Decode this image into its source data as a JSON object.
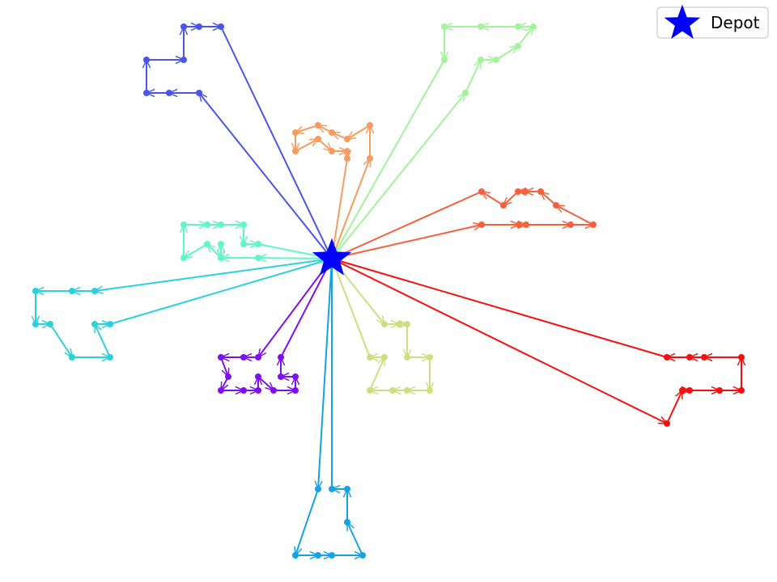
{
  "chart_data": {
    "type": "route-map",
    "title": "",
    "axes_visible": false,
    "legend": {
      "placement": "top-right",
      "entries": [
        {
          "label": "Depot",
          "marker": "star",
          "color": "#0000ff"
        }
      ]
    },
    "depot": {
      "x": 410,
      "y": 320
    },
    "routes": [
      {
        "name": "route-blue",
        "color": "#4a55ec",
        "stops": [
          [
            246,
            115
          ],
          [
            209,
            115
          ],
          [
            181,
            115
          ],
          [
            181,
            74
          ],
          [
            227,
            74
          ],
          [
            227,
            33
          ],
          [
            246,
            33
          ],
          [
            273,
            33
          ]
        ]
      },
      {
        "name": "route-orange",
        "color": "#f79c5c",
        "stops": [
          [
            457,
            196
          ],
          [
            457,
            155
          ],
          [
            429,
            172
          ],
          [
            410,
            164
          ],
          [
            393,
            155
          ],
          [
            365,
            164
          ],
          [
            365,
            187
          ],
          [
            393,
            172
          ],
          [
            410,
            187
          ],
          [
            429,
            187
          ],
          [
            429,
            196
          ]
        ]
      },
      {
        "name": "route-lightgreen",
        "color": "#a2f39a",
        "stops": [
          [
            575,
            115
          ],
          [
            594,
            74
          ],
          [
            613,
            74
          ],
          [
            640,
            57
          ],
          [
            659,
            33
          ],
          [
            640,
            33
          ],
          [
            594,
            33
          ],
          [
            549,
            33
          ],
          [
            549,
            74
          ]
        ]
      },
      {
        "name": "route-redorange",
        "color": "#f5603d",
        "stops": [
          [
            595,
            278
          ],
          [
            641,
            278
          ],
          [
            650,
            278
          ],
          [
            705,
            278
          ],
          [
            733,
            278
          ],
          [
            687,
            254
          ],
          [
            668,
            237
          ],
          [
            649,
            237
          ],
          [
            640,
            237
          ],
          [
            622,
            254
          ],
          [
            595,
            237
          ]
        ]
      },
      {
        "name": "route-aqua",
        "color": "#62f5c8",
        "stops": [
          [
            319,
            319
          ],
          [
            273,
            319
          ],
          [
            273,
            302
          ],
          [
            273,
            319
          ],
          [
            256,
            302
          ],
          [
            227,
            319
          ],
          [
            227,
            278
          ],
          [
            256,
            278
          ],
          [
            273,
            278
          ],
          [
            301,
            278
          ],
          [
            301,
            302
          ],
          [
            319,
            302
          ]
        ]
      },
      {
        "name": "route-cyan",
        "color": "#2ad1dc",
        "stops": [
          [
            117,
            360
          ],
          [
            89,
            360
          ],
          [
            44,
            360
          ],
          [
            44,
            401
          ],
          [
            62,
            401
          ],
          [
            89,
            442
          ],
          [
            136,
            442
          ],
          [
            117,
            401
          ],
          [
            136,
            401
          ]
        ]
      },
      {
        "name": "route-purple",
        "color": "#7d10ee",
        "stops": [
          [
            319,
            442
          ],
          [
            301,
            442
          ],
          [
            273,
            442
          ],
          [
            282,
            466
          ],
          [
            273,
            483
          ],
          [
            301,
            483
          ],
          [
            319,
            483
          ],
          [
            319,
            466
          ],
          [
            338,
            483
          ],
          [
            365,
            483
          ],
          [
            365,
            466
          ],
          [
            347,
            466
          ],
          [
            347,
            442
          ]
        ]
      },
      {
        "name": "route-khaki",
        "color": "#d0de7f",
        "stops": [
          [
            475,
            401
          ],
          [
            493,
            401
          ],
          [
            503,
            401
          ],
          [
            503,
            442
          ],
          [
            531,
            442
          ],
          [
            531,
            483
          ],
          [
            503,
            483
          ],
          [
            485,
            483
          ],
          [
            457,
            483
          ],
          [
            475,
            442
          ],
          [
            457,
            442
          ]
        ]
      },
      {
        "name": "route-skyblue",
        "color": "#13a3e4",
        "stops": [
          [
            393,
            605
          ],
          [
            365,
            687
          ],
          [
            393,
            687
          ],
          [
            410,
            687
          ],
          [
            448,
            687
          ],
          [
            429,
            646
          ],
          [
            429,
            605
          ],
          [
            410,
            605
          ]
        ]
      },
      {
        "name": "route-red",
        "color": "#f70f0f",
        "stops": [
          [
            824,
            524
          ],
          [
            843,
            483
          ],
          [
            852,
            483
          ],
          [
            889,
            483
          ],
          [
            916,
            483
          ],
          [
            916,
            442
          ],
          [
            870,
            442
          ],
          [
            852,
            442
          ],
          [
            824,
            442
          ]
        ]
      }
    ]
  }
}
